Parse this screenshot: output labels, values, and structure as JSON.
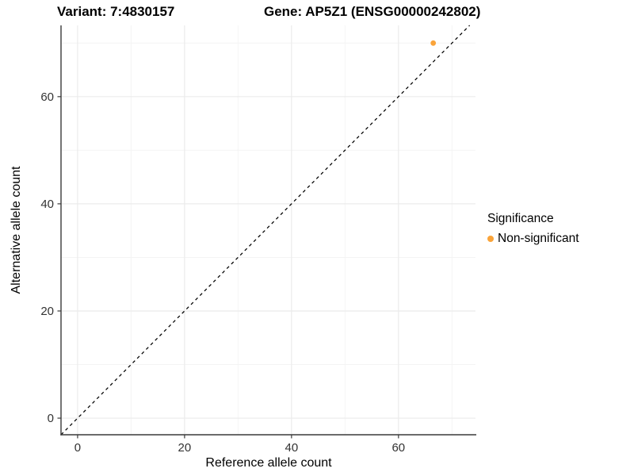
{
  "titles": {
    "variant": "Variant: 7:4830157",
    "gene": "Gene: AP5Z1 (ENSG00000242802)"
  },
  "chart_data": {
    "type": "scatter",
    "xlabel": "Reference allele count",
    "ylabel": "Alternative allele count",
    "xlim": [
      -3.1,
      74.4
    ],
    "ylim": [
      -3.1,
      73.3
    ],
    "x_major_ticks": [
      0,
      20,
      40,
      60
    ],
    "y_major_ticks": [
      0,
      20,
      40,
      60
    ],
    "x_minor_gridlines": [
      10,
      30,
      50,
      70
    ],
    "y_minor_gridlines": [
      10,
      30,
      50,
      70
    ],
    "grid": true,
    "reference_line": {
      "type": "identity",
      "style": "dashed",
      "from": [
        -3.1,
        -3.1
      ],
      "to": [
        73.3,
        73.3
      ],
      "color": "#000000"
    },
    "series": [
      {
        "name": "Non-significant",
        "color": "#FAA43A",
        "points": [
          {
            "x": 66.5,
            "y": 70
          }
        ]
      }
    ],
    "legend": {
      "title": "Significance",
      "position": "right",
      "items": [
        {
          "label": "Non-significant",
          "color": "#FAA43A",
          "marker": "circle"
        }
      ]
    }
  }
}
